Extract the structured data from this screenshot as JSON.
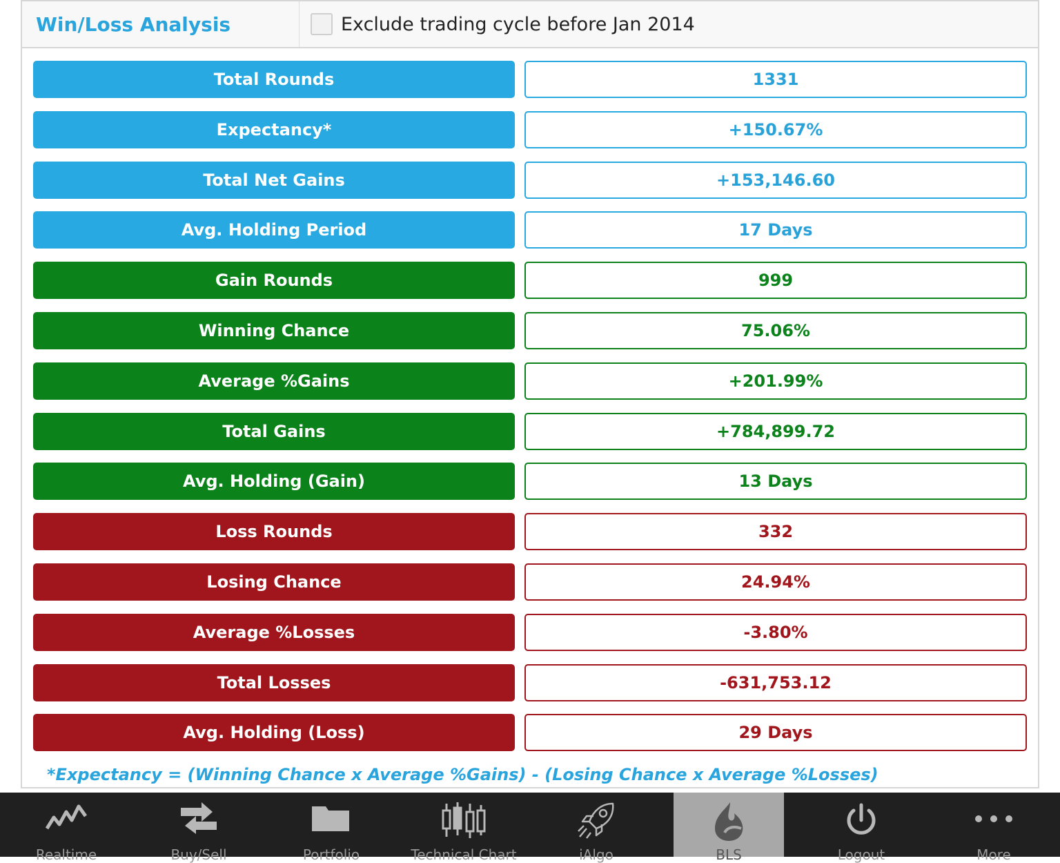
{
  "header": {
    "title": "Win/Loss Analysis",
    "exclude_label": "Exclude trading cycle before Jan 2014",
    "exclude_checked": false
  },
  "rows": [
    {
      "label": "Total Rounds",
      "value": "1331",
      "color": "blue"
    },
    {
      "label": "Expectancy*",
      "value": "+150.67%",
      "color": "blue"
    },
    {
      "label": "Total Net Gains",
      "value": "+153,146.60",
      "color": "blue"
    },
    {
      "label": "Avg. Holding Period",
      "value": "17 Days",
      "color": "blue"
    },
    {
      "label": "Gain Rounds",
      "value": "999",
      "color": "green"
    },
    {
      "label": "Winning Chance",
      "value": "75.06%",
      "color": "green"
    },
    {
      "label": "Average %Gains",
      "value": "+201.99%",
      "color": "green"
    },
    {
      "label": "Total Gains",
      "value": "+784,899.72",
      "color": "green"
    },
    {
      "label": "Avg. Holding (Gain)",
      "value": "13 Days",
      "color": "green"
    },
    {
      "label": "Loss Rounds",
      "value": "332",
      "color": "red"
    },
    {
      "label": "Losing Chance",
      "value": "24.94%",
      "color": "red"
    },
    {
      "label": "Average %Losses",
      "value": "-3.80%",
      "color": "red"
    },
    {
      "label": "Total Losses",
      "value": "-631,753.12",
      "color": "red"
    },
    {
      "label": "Avg. Holding (Loss)",
      "value": "29 Days",
      "color": "red"
    }
  ],
  "footnote": "*Expectancy = (Winning Chance x Average %Gains) - (Losing Chance x Average %Losses)",
  "colors": {
    "blue": "#29a9e1",
    "green": "#0b831a",
    "red": "#a1161c"
  },
  "tabs": [
    {
      "label": "Realtime",
      "icon": "line-chart-icon",
      "active": false
    },
    {
      "label": "Buy/Sell",
      "icon": "transfer-arrows-icon",
      "active": false
    },
    {
      "label": "Portfolio",
      "icon": "folder-icon",
      "active": false
    },
    {
      "label": "Technical Chart",
      "icon": "candlestick-icon",
      "active": false
    },
    {
      "label": "iAlgo",
      "icon": "rocket-icon",
      "active": false
    },
    {
      "label": "BLS",
      "icon": "flame-icon",
      "active": true
    },
    {
      "label": "Logout",
      "icon": "power-icon",
      "active": false
    },
    {
      "label": "More",
      "icon": "more-dots-icon",
      "active": false
    }
  ]
}
